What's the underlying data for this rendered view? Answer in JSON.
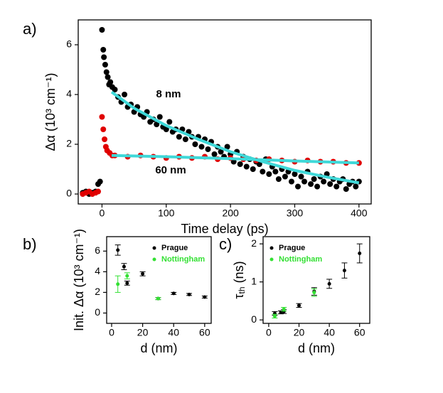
{
  "chart_data": [
    {
      "type": "scatter",
      "label": "a)",
      "xlabel": "Time delay (ps)",
      "ylabel": "Δα (10³ cm⁻¹)",
      "annotations": [
        "8 nm",
        "60 nm"
      ],
      "xlim": [
        -37,
        419
      ],
      "ylim": [
        -0.4,
        7
      ],
      "xticks": [
        0,
        100,
        200,
        300,
        400
      ],
      "yticks": [
        0,
        2,
        4,
        6
      ],
      "series": [
        {
          "color": "#000000",
          "style": "points",
          "x": [
            -30,
            -25,
            -20,
            -15,
            -10,
            -6,
            -3,
            0,
            2,
            3,
            5,
            7,
            9,
            11,
            13,
            16,
            20,
            25,
            30,
            35,
            40,
            45,
            50,
            55,
            60,
            65,
            70,
            75,
            80,
            85,
            90,
            95,
            100,
            105,
            110,
            115,
            120,
            125,
            130,
            135,
            140,
            145,
            150,
            155,
            160,
            165,
            170,
            175,
            180,
            185,
            190,
            195,
            200,
            205,
            210,
            215,
            220,
            225,
            230,
            235,
            240,
            245,
            250,
            255,
            260,
            265,
            270,
            275,
            280,
            285,
            290,
            295,
            300,
            305,
            310,
            315,
            320,
            325,
            330,
            335,
            340,
            345,
            350,
            355,
            360,
            365,
            370,
            375,
            380,
            385,
            390,
            395,
            400
          ],
          "values": [
            0.05,
            0.1,
            0,
            0.05,
            0.1,
            0.4,
            0.5,
            6.6,
            5.8,
            5.5,
            5.2,
            4.9,
            4.7,
            4.4,
            4.5,
            4.3,
            4.2,
            3.9,
            3.7,
            4.0,
            3.5,
            3.6,
            3.3,
            3.5,
            3.2,
            3.1,
            3.3,
            2.9,
            3.0,
            2.8,
            3.1,
            2.7,
            2.6,
            2.9,
            2.5,
            2.6,
            2.3,
            2.6,
            2.2,
            2.5,
            2.3,
            2.0,
            2.3,
            1.9,
            2.2,
            1.8,
            2.1,
            1.6,
            1.9,
            1.7,
            1.5,
            1.9,
            1.6,
            1.3,
            1.7,
            1.2,
            1.5,
            1.1,
            1.4,
            1.0,
            1.3,
            1.2,
            0.9,
            1.4,
            0.8,
            1.1,
            0.9,
            0.6,
            1.0,
            0.7,
            0.9,
            0.5,
            0.8,
            0.3,
            0.7,
            0.5,
            0.9,
            0.4,
            0.6,
            0.3,
            0.7,
            0.5,
            0.8,
            0.4,
            0.6,
            0.3,
            0.5,
            0.6,
            0.2,
            0.4,
            0.5,
            0.3,
            0.5
          ]
        },
        {
          "color": "#e00000",
          "style": "points",
          "x": [
            -30,
            -25,
            -20,
            -15,
            -10,
            -6,
            0,
            2,
            4,
            6,
            8,
            12,
            16,
            20,
            40,
            60,
            80,
            100,
            120,
            140,
            160,
            180,
            200,
            220,
            240,
            260,
            280,
            300,
            320,
            340,
            360,
            380,
            400
          ],
          "values": [
            0,
            0.05,
            0.1,
            0,
            0.05,
            0.1,
            3.1,
            2.6,
            2.2,
            1.9,
            1.75,
            1.65,
            1.55,
            1.55,
            1.5,
            1.55,
            1.5,
            1.45,
            1.5,
            1.45,
            1.5,
            1.4,
            1.45,
            1.4,
            1.35,
            1.4,
            1.35,
            1.3,
            1.35,
            1.3,
            1.3,
            1.25,
            1.25
          ]
        },
        {
          "color": "#3fd8d8",
          "style": "line",
          "x": [
            15,
            50,
            100,
            150,
            200,
            250,
            300,
            350,
            400
          ],
          "values": [
            4.1,
            3.45,
            2.75,
            2.2,
            1.7,
            1.3,
            0.95,
            0.68,
            0.45
          ]
        },
        {
          "color": "#3fd8d8",
          "style": "line",
          "x": [
            15,
            100,
            200,
            300,
            400
          ],
          "values": [
            1.55,
            1.5,
            1.42,
            1.33,
            1.25
          ]
        }
      ]
    },
    {
      "type": "errorbar",
      "label": "b)",
      "xlabel": "d (nm)",
      "ylabel": "Init. Δα (10³ cm⁻¹)",
      "legend": "upper right",
      "xlim": [
        -3.2,
        64.2
      ],
      "ylim": [
        -1,
        7.4
      ],
      "xticks": [
        0,
        20,
        40,
        60
      ],
      "yticks": [
        0,
        2,
        4,
        6
      ],
      "series": [
        {
          "name": "Prague",
          "color": "#000000",
          "x": [
            4,
            8,
            10,
            20,
            30,
            40,
            50,
            60
          ],
          "values": [
            6.1,
            4.5,
            2.9,
            3.8,
            1.4,
            1.9,
            1.8,
            1.55
          ],
          "errors": [
            0.5,
            0.3,
            0.2,
            0.2,
            0.1,
            0.1,
            0.1,
            0.1
          ]
        },
        {
          "name": "Nottingham",
          "color": "#33e033",
          "x": [
            4,
            10,
            30
          ],
          "values": [
            2.8,
            3.6,
            1.4
          ],
          "errors": [
            0.8,
            0.3,
            0.1
          ]
        }
      ]
    },
    {
      "type": "errorbar",
      "label": "c)",
      "xlabel": "d (nm)",
      "ylabel": {
        "symbol": "τ",
        "subscript": "th",
        "unit": " (ns)"
      },
      "legend": "upper left",
      "xlim": [
        -3.7,
        66.7
      ],
      "ylim": [
        -0.09,
        2.19
      ],
      "xticks": [
        0,
        20,
        40,
        60
      ],
      "yticks": [
        0,
        1,
        2
      ],
      "series": [
        {
          "name": "Prague",
          "color": "#000000",
          "x": [
            4,
            8,
            10,
            20,
            30,
            40,
            50,
            60
          ],
          "values": [
            0.17,
            0.2,
            0.22,
            0.38,
            0.75,
            0.95,
            1.3,
            1.75
          ],
          "errors": [
            0.05,
            0.04,
            0.05,
            0.05,
            0.1,
            0.12,
            0.2,
            0.25
          ]
        },
        {
          "name": "Nottingham",
          "color": "#33e033",
          "x": [
            4,
            10,
            30
          ],
          "values": [
            0.1,
            0.28,
            0.72
          ],
          "errors": [
            0.05,
            0.05,
            0.1
          ]
        }
      ]
    }
  ]
}
